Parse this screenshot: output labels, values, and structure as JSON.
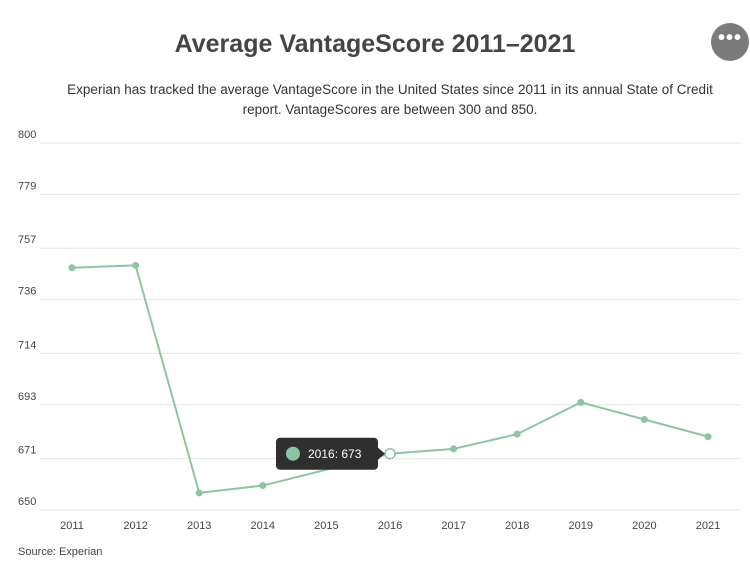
{
  "title": "Average VantageScore 2011–2021",
  "subtitle": "Experian has tracked the average VantageScore in the United States since 2011 in its annual State of Credit report. VantageScores are between 300 and 850.",
  "source": "Source: Experian",
  "menu": {
    "icon": "more-horizontal-icon",
    "label": "•••"
  },
  "colors": {
    "line": "#8fc4a2",
    "grid": "#e6e6e6",
    "tooltip_bg": "#2f2f2f",
    "menu_bg": "#7b7b7b"
  },
  "tooltip": {
    "text": "2016: 673",
    "category": "2016"
  },
  "chart_data": {
    "type": "line",
    "categories": [
      "2011",
      "2012",
      "2013",
      "2014",
      "2015",
      "2016",
      "2017",
      "2018",
      "2019",
      "2020",
      "2021"
    ],
    "series": [
      {
        "values": [
          749,
          750,
          657,
          660,
          null,
          673,
          675,
          681,
          694,
          687,
          680
        ]
      }
    ],
    "y_ticks": [
      650,
      671,
      693,
      714,
      736,
      757,
      779,
      800
    ],
    "ylim": [
      650,
      800
    ],
    "grid": true,
    "legend": "none",
    "xlabel": "",
    "ylabel": ""
  }
}
